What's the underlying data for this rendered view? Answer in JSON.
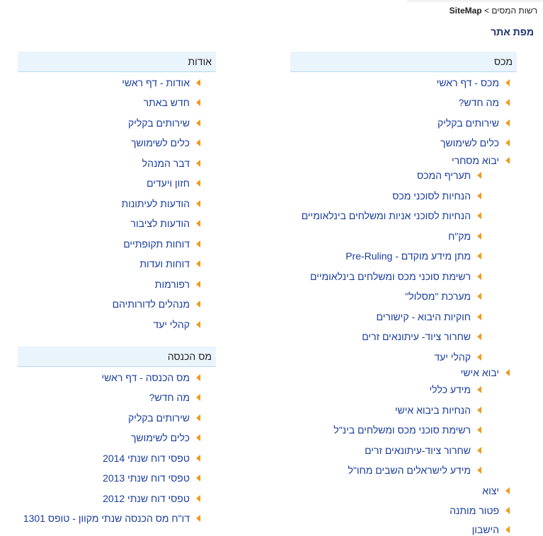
{
  "breadcrumb": {
    "home": "רשות המסים",
    "separator": ">",
    "current": "SiteMap"
  },
  "page_title": "מפת אתר",
  "sections": {
    "customs": {
      "title": "מכס",
      "items": [
        "מכס - דף ראשי",
        "מה חדש?",
        "שירותים בקליק",
        "כלים לשימושך",
        "יבוא מסחרי",
        "תעריף המכס",
        "הנחיות לסוכני מכס",
        "הנחיות לסוכני אניות ומשלחים בינלאומיים",
        "מק\"ח",
        "מתן מידע מוקדם - Pre-Ruling",
        "רשימת סוכני מכס ומשלחים בינלאומיים",
        "מערכת \"מסלול\"",
        "חוקיות היבוא - קישורים",
        "שחרור ציוד- עיתונאים זרים",
        "קהלי יעד",
        "יבוא אישי",
        "מידע כללי",
        "הנחיות ביבוא אישי",
        "רשימת סוכני מכס ומשלחים בינ\"ל",
        "שחרור ציוד-עיתונאים זרים",
        "מידע לישראלים השבים מחו\"ל",
        "יצוא",
        "פטור מותנה",
        "הישבון"
      ]
    },
    "about": {
      "title": "אודות",
      "items": [
        "אודות - דף ראשי",
        "חדש באתר",
        "שירותים בקליק",
        "כלים לשימושך",
        "דבר המנהל",
        "חזון ויעדים",
        "הודעות לעיתונות",
        "הודעות לציבור",
        "דוחות תקופתיים",
        "דוחות ועדות",
        "רפורמות",
        "מנהלים לדורותיהם",
        "קהלי יעד"
      ]
    },
    "income_tax": {
      "title": "מס הכנסה",
      "items": [
        "מס הכנסה - דף ראשי",
        "מה חדש?",
        "שירותים בקליק",
        "כלים לשימושך",
        "טפסי דוח שנתי 2014",
        "טפסי דוח שנתי 2013",
        "טפסי דוח שנתי 2012",
        "דו\"ח מס הכנסה שנתי מקוון - טופס 1301"
      ]
    }
  }
}
